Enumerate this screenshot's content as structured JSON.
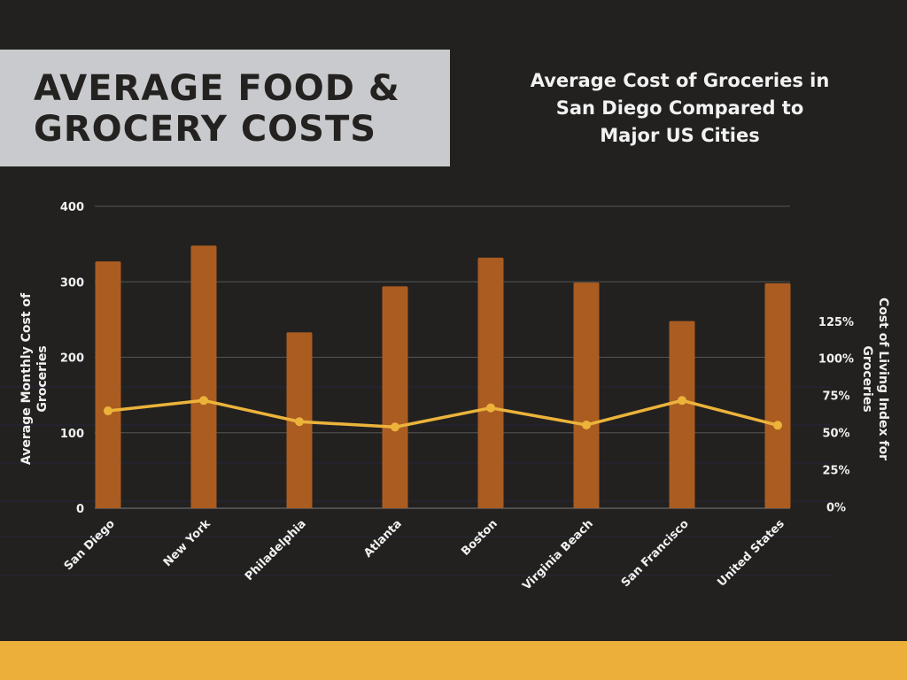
{
  "header": {
    "title_line1": "AVERAGE FOOD &",
    "title_line2": "GROCERY COSTS"
  },
  "colors": {
    "background": "#222120",
    "title_box": "#c9cacd",
    "bar": "#ab5c21",
    "line": "#ecb33b",
    "footer": "#ecb03a"
  },
  "chart_data": {
    "type": "bar+line",
    "title_lines": [
      "Average Cost of Groceries in",
      "San Diego Compared to",
      "Major US Cities"
    ],
    "categories": [
      "San Diego",
      "New York",
      "Philadelphia",
      "Atlanta",
      "Boston",
      "Virginia Beach",
      "San Francisco",
      "United States"
    ],
    "series": [
      {
        "type": "bar",
        "axis": "left",
        "values": [
          327,
          348,
          233,
          294,
          332,
          299,
          248,
          298
        ]
      },
      {
        "type": "line",
        "axis": "right",
        "values": [
          64.6,
          71.6,
          57.3,
          53.7,
          66.6,
          55.1,
          71.6,
          54.9
        ]
      }
    ],
    "ylabel_left_lines": [
      "Average Monthly Cost of",
      "Groceries"
    ],
    "ylabel_right_lines": [
      "Cost of Living Index for",
      "Groceries"
    ],
    "ylim_left": [
      0,
      400
    ],
    "yticks_left": [
      "0",
      "100",
      "200",
      "300",
      "400"
    ],
    "ylim_right": [
      0,
      202
    ],
    "yticks_right": [
      "0%",
      "25%",
      "50%",
      "75%",
      "100%",
      "125%"
    ],
    "grid": true
  }
}
